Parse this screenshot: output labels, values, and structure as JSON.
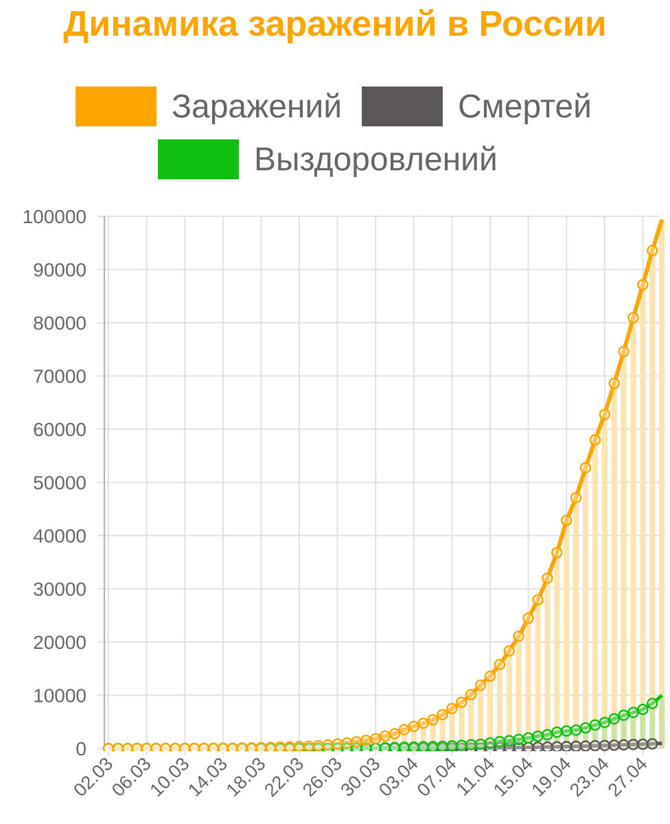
{
  "title": "Динамика заражений в России",
  "colors": {
    "title": "#ffa500",
    "infected": "#ffa500",
    "infected_fill": "#ffe3b0",
    "deaths": "#5c5857",
    "recovered": "#10c010",
    "recovered_fill": "#cde3a0",
    "grid": "#e2e2e2",
    "axis": "#b0b0b0"
  },
  "legend": {
    "items": [
      {
        "label": "Заражений",
        "color": "#ffa500"
      },
      {
        "label": "Смертей",
        "color": "#5c5857"
      },
      {
        "label": "Выздоровлений",
        "color": "#10c010"
      }
    ]
  },
  "chart_data": {
    "type": "line",
    "title": "Динамика заражений в России",
    "xlabel": "",
    "ylabel": "",
    "ylim": [
      0,
      100000
    ],
    "yticks": [
      0,
      10000,
      20000,
      30000,
      40000,
      50000,
      60000,
      70000,
      80000,
      90000,
      100000
    ],
    "x_tick_labels": [
      "02.03",
      "06.03",
      "10.03",
      "14.03",
      "18.03",
      "22.03",
      "26.03",
      "30.03",
      "03.04",
      "07.04",
      "11.04",
      "15.04",
      "19.04",
      "23.04",
      "27.04"
    ],
    "x_tick_every": 4,
    "grid": true,
    "legend_position": "top",
    "x": [
      "02.03",
      "03.03",
      "04.03",
      "05.03",
      "06.03",
      "07.03",
      "08.03",
      "09.03",
      "10.03",
      "11.03",
      "12.03",
      "13.03",
      "14.03",
      "15.03",
      "16.03",
      "17.03",
      "18.03",
      "19.03",
      "20.03",
      "21.03",
      "22.03",
      "23.03",
      "24.03",
      "25.03",
      "26.03",
      "27.03",
      "28.03",
      "29.03",
      "30.03",
      "31.03",
      "01.04",
      "02.04",
      "03.04",
      "04.04",
      "05.04",
      "06.04",
      "07.04",
      "08.04",
      "09.04",
      "10.04",
      "11.04",
      "12.04",
      "13.04",
      "14.04",
      "15.04",
      "16.04",
      "17.04",
      "18.04",
      "19.04",
      "20.04",
      "21.04",
      "22.04",
      "23.04",
      "24.04",
      "25.04",
      "26.04",
      "27.04",
      "28.04",
      "29.04"
    ],
    "series": [
      {
        "name": "Заражений",
        "color": "#ffa500",
        "values": [
          3,
          3,
          3,
          3,
          4,
          10,
          17,
          17,
          20,
          28,
          34,
          45,
          59,
          63,
          93,
          114,
          147,
          199,
          253,
          306,
          367,
          438,
          495,
          658,
          840,
          1036,
          1264,
          1534,
          1836,
          2337,
          2777,
          3548,
          4149,
          4731,
          5389,
          6343,
          7497,
          8672,
          10131,
          11917,
          13584,
          15770,
          18328,
          21102,
          24490,
          27938,
          32008,
          36793,
          42853,
          47121,
          52763,
          57999,
          62773,
          68622,
          74588,
          80949,
          87147,
          93558,
          99399
        ],
        "values_visible_to_index": 57
      },
      {
        "name": "Смертей",
        "color": "#5c5857",
        "values": [
          0,
          0,
          0,
          0,
          0,
          0,
          0,
          0,
          0,
          0,
          0,
          0,
          0,
          0,
          0,
          0,
          0,
          1,
          1,
          1,
          1,
          1,
          1,
          2,
          3,
          4,
          4,
          8,
          9,
          17,
          24,
          30,
          34,
          43,
          45,
          47,
          58,
          63,
          76,
          94,
          106,
          130,
          148,
          170,
          198,
          232,
          273,
          313,
          361,
          405,
          456,
          513,
          555,
          615,
          681,
          747,
          794,
          867,
          972
        ]
      },
      {
        "name": "Выздоровлений",
        "color": "#10c010",
        "values": [
          0,
          0,
          0,
          0,
          0,
          0,
          0,
          0,
          0,
          0,
          0,
          0,
          0,
          0,
          0,
          0,
          0,
          0,
          0,
          0,
          0,
          0,
          22,
          22,
          38,
          45,
          49,
          64,
          66,
          121,
          190,
          235,
          281,
          333,
          355,
          406,
          494,
          580,
          698,
          795,
          1045,
          1291,
          1470,
          1694,
          1986,
          2304,
          2590,
          3057,
          3291,
          3446,
          3873,
          4420,
          4891,
          5568,
          6250,
          6767,
          7346,
          8456,
          9971
        ]
      }
    ]
  }
}
